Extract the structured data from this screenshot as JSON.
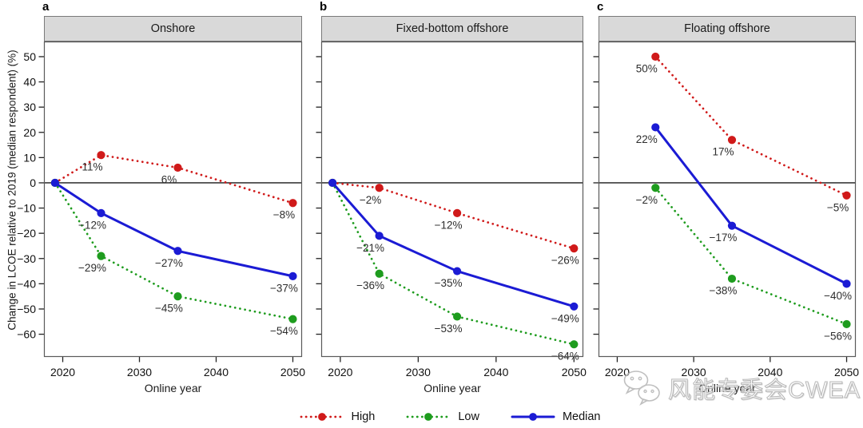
{
  "figure": {
    "y_axis_label": "Change in LCOE relative to 2019 (median respondent) (%)",
    "x_axis_label": "Online year",
    "colors": {
      "high": "#d01a1a",
      "low": "#1e9c1e",
      "median": "#1b1bd4",
      "panel_header_bg": "#d9d9d9",
      "border": "#5a5a5a",
      "zero_line": "#3c3c3c",
      "tick": "#222222"
    },
    "ylim": [
      -69,
      56
    ],
    "xlim": [
      2017.55,
      2051.2
    ],
    "y_ticks": [
      {
        "value": 50,
        "label": "50"
      },
      {
        "value": 40,
        "label": "40"
      },
      {
        "value": 30,
        "label": "30"
      },
      {
        "value": 20,
        "label": "20"
      },
      {
        "value": 10,
        "label": "10"
      },
      {
        "value": 0,
        "label": "0"
      },
      {
        "value": -10,
        "label": "−10"
      },
      {
        "value": -20,
        "label": "−20"
      },
      {
        "value": -30,
        "label": "−30"
      },
      {
        "value": -40,
        "label": "−40"
      },
      {
        "value": -50,
        "label": "−50"
      },
      {
        "value": -60,
        "label": "−60"
      }
    ],
    "x_ticks": [
      {
        "value": 2020,
        "label": "2020"
      },
      {
        "value": 2030,
        "label": "2030"
      },
      {
        "value": 2040,
        "label": "2040"
      },
      {
        "value": 2050,
        "label": "2050"
      }
    ]
  },
  "chart_data": [
    {
      "type": "line",
      "panel_label": "a",
      "title": "Onshore",
      "show_y_tick_labels": true,
      "x": [
        2019,
        2025,
        2035,
        2050
      ],
      "series": [
        {
          "name": "High",
          "color_key": "high",
          "style": "dotted",
          "values": [
            0,
            11,
            6,
            -8
          ],
          "point_labels": [
            "",
            "11%",
            "6%",
            "−8%"
          ]
        },
        {
          "name": "Low",
          "color_key": "low",
          "style": "dotted",
          "values": [
            0,
            -29,
            -45,
            -54
          ],
          "point_labels": [
            "",
            "−29%",
            "−45%",
            "−54%"
          ]
        },
        {
          "name": "Median",
          "color_key": "median",
          "style": "solid",
          "values": [
            0,
            -12,
            -27,
            -37
          ],
          "point_labels": [
            "",
            "−12%",
            "−27%",
            "−37%"
          ]
        }
      ]
    },
    {
      "type": "line",
      "panel_label": "b",
      "title": "Fixed-bottom offshore",
      "show_y_tick_labels": false,
      "x": [
        2019,
        2025,
        2035,
        2050
      ],
      "series": [
        {
          "name": "High",
          "color_key": "high",
          "style": "dotted",
          "values": [
            0,
            -2,
            -12,
            -26
          ],
          "point_labels": [
            "",
            "−2%",
            "−12%",
            "−26%"
          ]
        },
        {
          "name": "Low",
          "color_key": "low",
          "style": "dotted",
          "values": [
            0,
            -36,
            -53,
            -64
          ],
          "point_labels": [
            "",
            "−36%",
            "−53%",
            "−64%"
          ]
        },
        {
          "name": "Median",
          "color_key": "median",
          "style": "solid",
          "values": [
            0,
            -21,
            -35,
            -49
          ],
          "point_labels": [
            "",
            "−21%",
            "−35%",
            "−49%"
          ]
        }
      ]
    },
    {
      "type": "line",
      "panel_label": "c",
      "title": "Floating offshore",
      "show_y_tick_labels": false,
      "x": [
        2025,
        2035,
        2050
      ],
      "series": [
        {
          "name": "High",
          "color_key": "high",
          "style": "dotted",
          "values": [
            50,
            17,
            -5
          ],
          "point_labels": [
            "50%",
            "17%",
            "−5%"
          ]
        },
        {
          "name": "Low",
          "color_key": "low",
          "style": "dotted",
          "values": [
            -2,
            -38,
            -56
          ],
          "point_labels": [
            "−2%",
            "−38%",
            "−56%"
          ]
        },
        {
          "name": "Median",
          "color_key": "median",
          "style": "solid",
          "values": [
            22,
            -17,
            -40
          ],
          "point_labels": [
            "22%",
            "−17%",
            "−40%"
          ]
        }
      ]
    }
  ],
  "legend": [
    {
      "label": "High",
      "color_key": "high",
      "style": "dotted"
    },
    {
      "label": "Low",
      "color_key": "low",
      "style": "dotted"
    },
    {
      "label": "Median",
      "color_key": "median",
      "style": "solid"
    }
  ],
  "watermark": {
    "text": "风能专委会CWEA",
    "icon": "wechat-icon"
  }
}
